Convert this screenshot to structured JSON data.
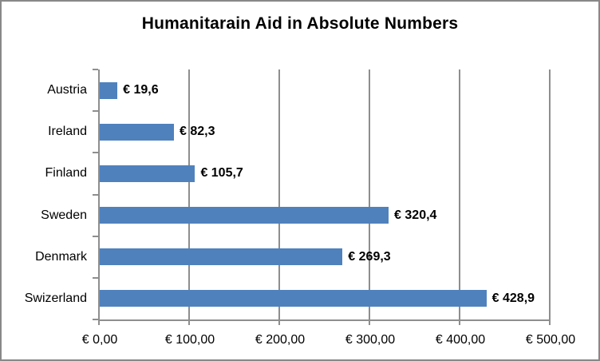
{
  "chart_data": {
    "type": "bar",
    "orientation": "horizontal",
    "title": "Humanitarain Aid in Absolute Numbers",
    "categories": [
      "Austria",
      "Ireland",
      "Finland",
      "Sweden",
      "Denmark",
      "Swizerland"
    ],
    "values": [
      19.6,
      82.3,
      105.7,
      320.4,
      269.3,
      428.9
    ],
    "value_labels": [
      "€ 19,6",
      "€ 82,3",
      "€ 105,7",
      "€ 320,4",
      "€ 269,3",
      "€ 428,9"
    ],
    "xlabel": "",
    "ylabel": "",
    "xlim": [
      0,
      500
    ],
    "x_tick_interval": 100,
    "x_tick_labels": [
      "€ 0,00",
      "€ 100,00",
      "€ 200,00",
      "€ 300,00",
      "€ 400,00",
      "€ 500,00"
    ],
    "grid": true,
    "legend": false,
    "colors": {
      "bar": "#4F81BD",
      "axis": "#8E8E8E",
      "gridline": "#8E8E8E",
      "chart_border": "#888888",
      "text": "#000000",
      "background": "#FFFFFF"
    }
  }
}
